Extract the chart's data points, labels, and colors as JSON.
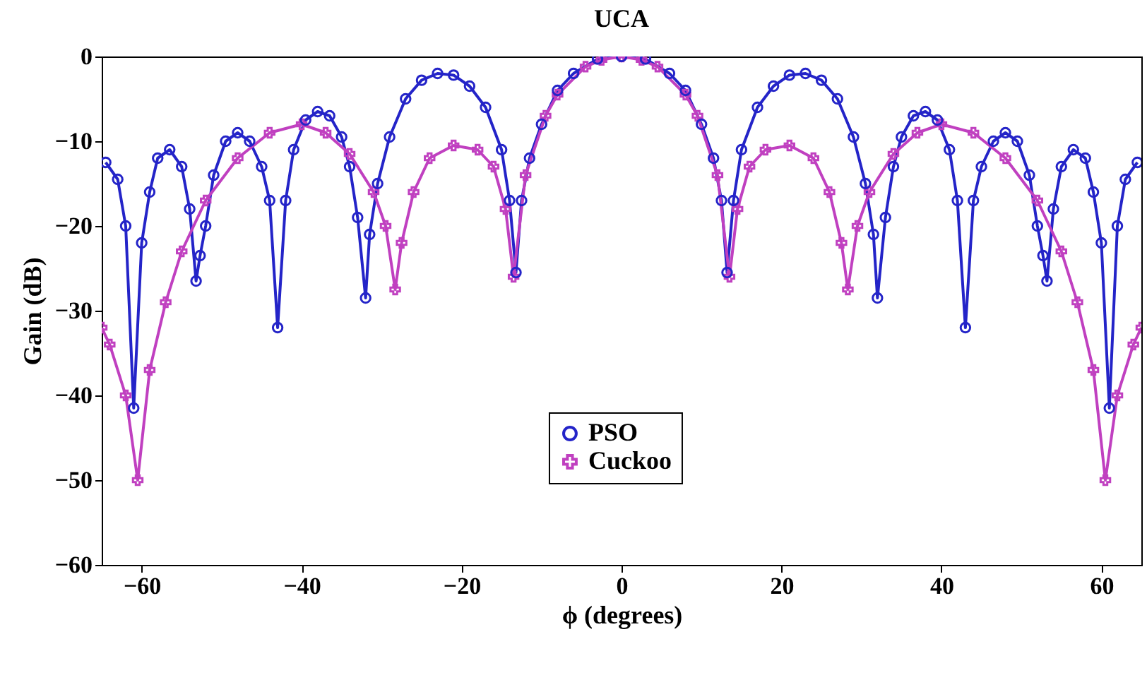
{
  "chart_data": {
    "type": "line",
    "title": "UCA",
    "xlabel": "ϕ (degrees)",
    "ylabel": "Gain (dB)",
    "xlim": [
      -65,
      65
    ],
    "ylim": [
      -60,
      0
    ],
    "xticks": [
      -60,
      -40,
      -20,
      0,
      20,
      40,
      60
    ],
    "yticks": [
      -60,
      -50,
      -40,
      -30,
      -20,
      -10,
      0
    ],
    "grid": false,
    "legend": "bottom",
    "line_style": "solid",
    "series": [
      {
        "name": "PSO",
        "color": "#2424c8",
        "marker": "circle",
        "x": [
          -64.5,
          -63,
          -62,
          -61,
          -60,
          -59,
          -58,
          -56.5,
          -55,
          -54,
          -53.2,
          -52.7,
          -52,
          -51,
          -49.5,
          -48,
          -46.5,
          -45,
          -44,
          -43,
          -42,
          -41,
          -39.5,
          -38,
          -36.5,
          -35,
          -34,
          -33,
          -32,
          -31.5,
          -30.5,
          -29,
          -27,
          -25,
          -23,
          -21,
          -19,
          -17,
          -15,
          -14,
          -13.2,
          -12.5,
          -11.5,
          -10,
          -8,
          -6,
          -3,
          0,
          3,
          6,
          8,
          10,
          11.5,
          12.5,
          13.2,
          14,
          15,
          17,
          19,
          21,
          23,
          25,
          27,
          29,
          30.5,
          31.5,
          32,
          33,
          34,
          35,
          36.5,
          38,
          39.5,
          41,
          42,
          43,
          44,
          45,
          46.5,
          48,
          49.5,
          51,
          52,
          52.7,
          53.2,
          54,
          55,
          56.5,
          58,
          59,
          60,
          61,
          62,
          63,
          64.5
        ],
        "values": [
          -12.5,
          -14.5,
          -20,
          -41.5,
          -22,
          -16,
          -12,
          -11,
          -13,
          -18,
          -26.5,
          -23.5,
          -20,
          -14,
          -10,
          -9,
          -10,
          -13,
          -17,
          -32,
          -17,
          -11,
          -7.5,
          -6.5,
          -7,
          -9.5,
          -13,
          -19,
          -28.5,
          -21,
          -15,
          -9.5,
          -5,
          -2.8,
          -2,
          -2.2,
          -3.5,
          -6,
          -11,
          -17,
          -25.5,
          -17,
          -12,
          -8,
          -4,
          -2,
          -0.3,
          0,
          -0.3,
          -2,
          -4,
          -8,
          -12,
          -17,
          -25.5,
          -17,
          -11,
          -6,
          -3.5,
          -2.2,
          -2,
          -2.8,
          -5,
          -9.5,
          -15,
          -21,
          -28.5,
          -19,
          -13,
          -9.5,
          -7,
          -6.5,
          -7.5,
          -11,
          -17,
          -32,
          -17,
          -13,
          -10,
          -9,
          -10,
          -14,
          -20,
          -23.5,
          -26.5,
          -18,
          -13,
          -11,
          -12,
          -16,
          -22,
          -41.5,
          -20,
          -14.5,
          -12.5
        ]
      },
      {
        "name": "Cuckoo",
        "color": "#c040c0",
        "marker": "cross",
        "x": [
          -65,
          -64,
          -62,
          -60.5,
          -59,
          -57,
          -55,
          -52,
          -48,
          -44,
          -40,
          -37,
          -34,
          -31,
          -29.5,
          -28.3,
          -27.5,
          -26,
          -24,
          -21,
          -18,
          -16,
          -14.5,
          -13.5,
          -12,
          -9.5,
          -8,
          -4.5,
          -2.5,
          0,
          2.5,
          4.5,
          8,
          9.5,
          12,
          13.5,
          14.5,
          16,
          18,
          21,
          24,
          26,
          27.5,
          28.3,
          29.5,
          31,
          34,
          37,
          40,
          44,
          48,
          52,
          55,
          57,
          59,
          60.5,
          62,
          64,
          65
        ],
        "values": [
          -32,
          -34,
          -40,
          -50,
          -37,
          -29,
          -23,
          -17,
          -12,
          -9,
          -8,
          -9,
          -11.5,
          -16,
          -20,
          -27.5,
          -22,
          -16,
          -12,
          -10.5,
          -11,
          -13,
          -18,
          -26,
          -14,
          -7,
          -4.5,
          -1.2,
          -0.4,
          0,
          -0.4,
          -1.2,
          -4.5,
          -7,
          -14,
          -26,
          -18,
          -13,
          -11,
          -10.5,
          -12,
          -16,
          -22,
          -27.5,
          -20,
          -16,
          -11.5,
          -9,
          -8,
          -9,
          -12,
          -17,
          -23,
          -29,
          -37,
          -50,
          -40,
          -34,
          -32
        ]
      }
    ]
  }
}
